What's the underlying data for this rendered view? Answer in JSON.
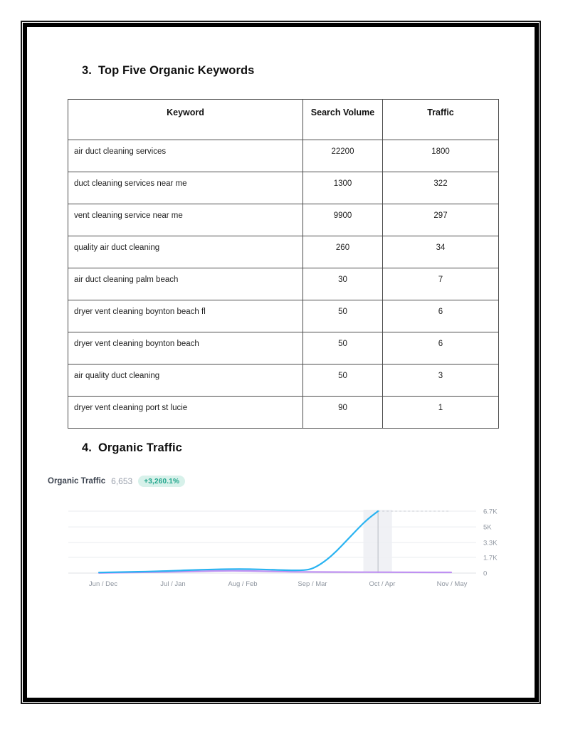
{
  "document": {
    "sections": [
      {
        "number": "3.",
        "title": "Top Five Organic Keywords"
      },
      {
        "number": "4.",
        "title": "Organic Traffic"
      }
    ],
    "keywords_table": {
      "headers": [
        "Keyword",
        "Search Volume",
        "Traffic"
      ],
      "rows": [
        [
          "air duct cleaning services",
          "22200",
          "1800"
        ],
        [
          "duct cleaning services near me",
          "1300",
          "322"
        ],
        [
          "vent cleaning service near me",
          "9900",
          "297"
        ],
        [
          "quality air duct cleaning",
          "260",
          "34"
        ],
        [
          "air duct cleaning palm beach",
          "30",
          "7"
        ],
        [
          "dryer vent cleaning boynton beach fl",
          "50",
          "6"
        ],
        [
          "dryer vent cleaning boynton beach",
          "50",
          "6"
        ],
        [
          "air quality duct cleaning",
          "50",
          "3"
        ],
        [
          "dryer vent cleaning port st lucie",
          "90",
          "1"
        ]
      ]
    }
  },
  "chart_data": {
    "type": "line",
    "title": "Organic Traffic",
    "current_value": "6,653",
    "change_badge": "+3,260.1%",
    "badge_text_color": "#1fa58b",
    "badge_bg_color": "#d7f1ea",
    "xlabel": "",
    "ylabel": "",
    "ylim": [
      0,
      6700
    ],
    "grid": "horizontal",
    "legend_position": "top-left",
    "y_ticks": [
      {
        "label": "0",
        "value": 0
      },
      {
        "label": "1.7K",
        "value": 1700
      },
      {
        "label": "3.3K",
        "value": 3300
      },
      {
        "label": "5K",
        "value": 5000
      },
      {
        "label": "6.7K",
        "value": 6700
      }
    ],
    "x_tick_labels": [
      "Jun / Dec",
      "Jul / Jan",
      "Aug / Feb",
      "Sep / Mar",
      "Oct / Apr",
      "Nov / May"
    ],
    "highlight_band": {
      "from_index": 3.73,
      "to_index": 4.14,
      "marker_index": 3.94
    },
    "peak_dashed_line_value": 6700,
    "series": [
      {
        "name": "organic-traffic-current",
        "color": "#29b3f1",
        "points": [
          [
            -0.06,
            60
          ],
          [
            0.3,
            110
          ],
          [
            0.7,
            180
          ],
          [
            1.0,
            250
          ],
          [
            1.4,
            370
          ],
          [
            1.8,
            430
          ],
          [
            2.1,
            425
          ],
          [
            2.4,
            370
          ],
          [
            2.6,
            315
          ],
          [
            2.8,
            285
          ],
          [
            2.95,
            360
          ],
          [
            3.06,
            700
          ],
          [
            3.2,
            1400
          ],
          [
            3.35,
            2400
          ],
          [
            3.5,
            3600
          ],
          [
            3.65,
            4800
          ],
          [
            3.8,
            5900
          ],
          [
            3.94,
            6700
          ]
        ]
      },
      {
        "name": "organic-traffic-previous",
        "color": "#bf90f2",
        "points": [
          [
            -0.06,
            15
          ],
          [
            0.5,
            70
          ],
          [
            1.0,
            130
          ],
          [
            1.5,
            215
          ],
          [
            1.9,
            255
          ],
          [
            2.3,
            200
          ],
          [
            2.7,
            140
          ],
          [
            3.0,
            120
          ],
          [
            3.4,
            105
          ],
          [
            3.94,
            95
          ],
          [
            4.4,
            85
          ],
          [
            4.99,
            75
          ]
        ]
      }
    ]
  }
}
